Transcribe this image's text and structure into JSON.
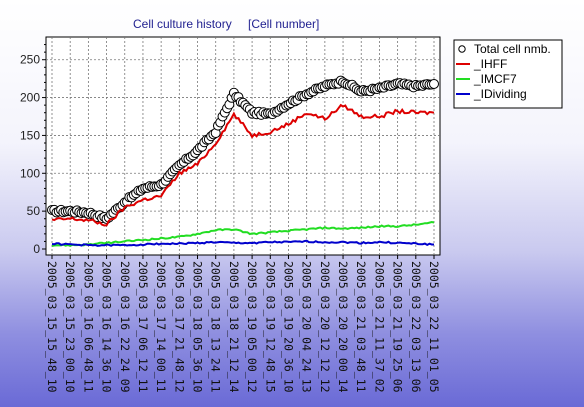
{
  "chart_data": {
    "type": "line",
    "title": "Cell culture history",
    "subtitle": "[Cell number]",
    "ylim": [
      0,
      280
    ],
    "y_ticks": [
      0,
      50,
      100,
      150,
      200,
      250
    ],
    "grid": true,
    "legend_position": "top-right",
    "x": [
      "2005_03_15_15_48_10",
      "2005_03_15_23_00_10",
      "2005_03_16_06_48_11",
      "2005_03_16_14_36_10",
      "2005_03_16_22_24_09",
      "2005_03_17_06_12_11",
      "2005_03_17_14_00_11",
      "2005_03_17_21_48_12",
      "2005_03_18_05_36_10",
      "2005_03_18_13_24_11",
      "2005_03_18_21_12_14",
      "2005_03_19_05_00_12",
      "2005_03_19_12_48_15",
      "2005_03_19_20_36_10",
      "2005_03_20_04_24_13",
      "2005_03_20_12_12_12",
      "2005_03_20_20_00_14",
      "2005_03_21_03_48_11",
      "2005_03_21_11_37_02",
      "2005_03_21_19_25_06",
      "2005_03_22_03_13_06",
      "2005_03_22_11_01_05"
    ],
    "series": [
      {
        "name": "Total cell nmb.",
        "color": "#000000",
        "marker": "circle",
        "values": [
          50,
          50,
          48,
          40,
          62,
          80,
          85,
          110,
          130,
          155,
          205,
          180,
          178,
          192,
          205,
          215,
          222,
          208,
          212,
          218,
          215,
          218
        ]
      },
      {
        "name": "_IHFF",
        "color": "#dd0000",
        "values": [
          38,
          40,
          38,
          32,
          55,
          65,
          70,
          100,
          112,
          140,
          178,
          150,
          155,
          165,
          180,
          172,
          190,
          175,
          175,
          182,
          180,
          180
        ]
      },
      {
        "name": "_IMCF7",
        "color": "#22dd22",
        "values": [
          5,
          5,
          6,
          8,
          10,
          12,
          14,
          16,
          20,
          25,
          26,
          20,
          22,
          24,
          26,
          28,
          27,
          28,
          30,
          30,
          32,
          35
        ]
      },
      {
        "name": "_IDividing",
        "color": "#0000cc",
        "values": [
          7,
          6,
          5,
          5,
          5,
          6,
          7,
          7,
          8,
          9,
          8,
          8,
          9,
          9,
          10,
          9,
          9,
          8,
          9,
          8,
          7,
          6
        ]
      }
    ]
  }
}
